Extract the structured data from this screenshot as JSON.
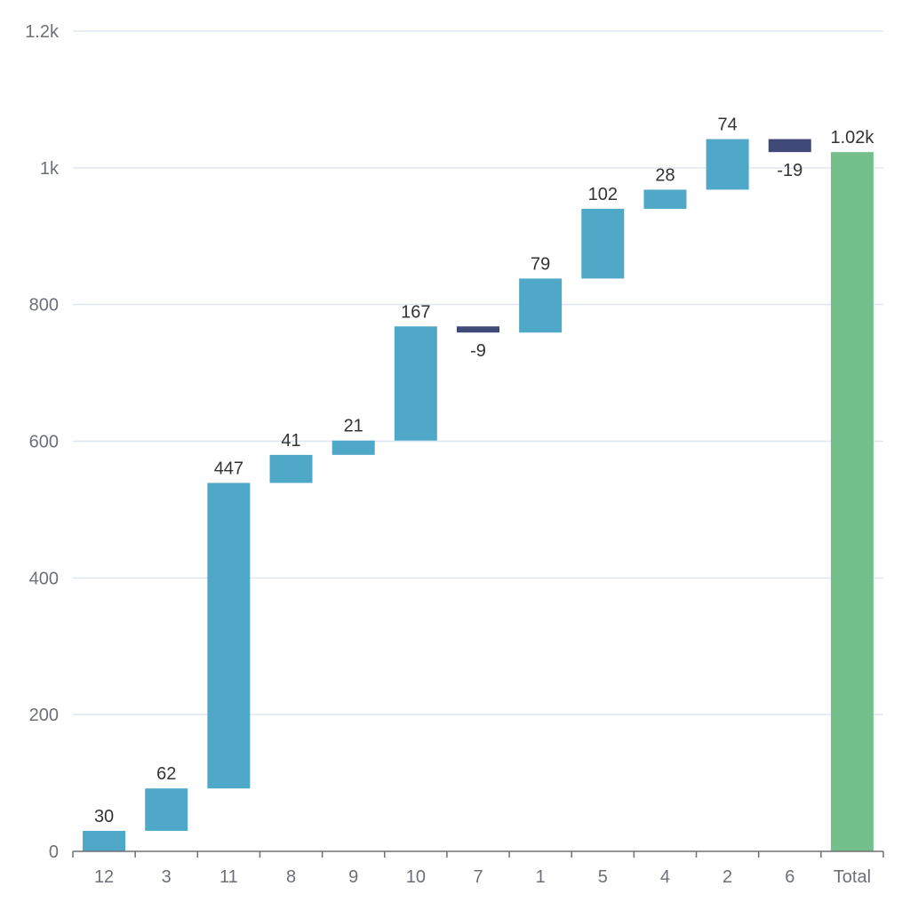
{
  "chart_data": {
    "type": "bar",
    "subtype": "waterfall",
    "title": "",
    "xlabel": "",
    "ylabel": "",
    "categories": [
      "12",
      "3",
      "11",
      "8",
      "9",
      "10",
      "7",
      "1",
      "5",
      "4",
      "2",
      "6",
      "Total"
    ],
    "values": [
      30,
      62,
      447,
      41,
      21,
      167,
      -9,
      79,
      102,
      28,
      74,
      -19,
      1023
    ],
    "data_labels": [
      "30",
      "62",
      "447",
      "41",
      "21",
      "167",
      "-9",
      "79",
      "102",
      "28",
      "74",
      "-19",
      "1.02k"
    ],
    "is_total": [
      false,
      false,
      false,
      false,
      false,
      false,
      false,
      false,
      false,
      false,
      false,
      false,
      true
    ],
    "ylim": [
      0,
      1200
    ],
    "y_ticks": [
      0,
      200,
      400,
      600,
      800,
      1000,
      1200
    ],
    "y_tick_labels": [
      "0",
      "200",
      "400",
      "600",
      "800",
      "1k",
      "1.2k"
    ],
    "grid": true,
    "legend": "none",
    "colors": {
      "increase": "#4fa8c7",
      "decrease": "#3f4a79",
      "total": "#73c08d",
      "grid": "#e0e6f1",
      "axis": "#6e7079",
      "label": "#333333"
    }
  }
}
